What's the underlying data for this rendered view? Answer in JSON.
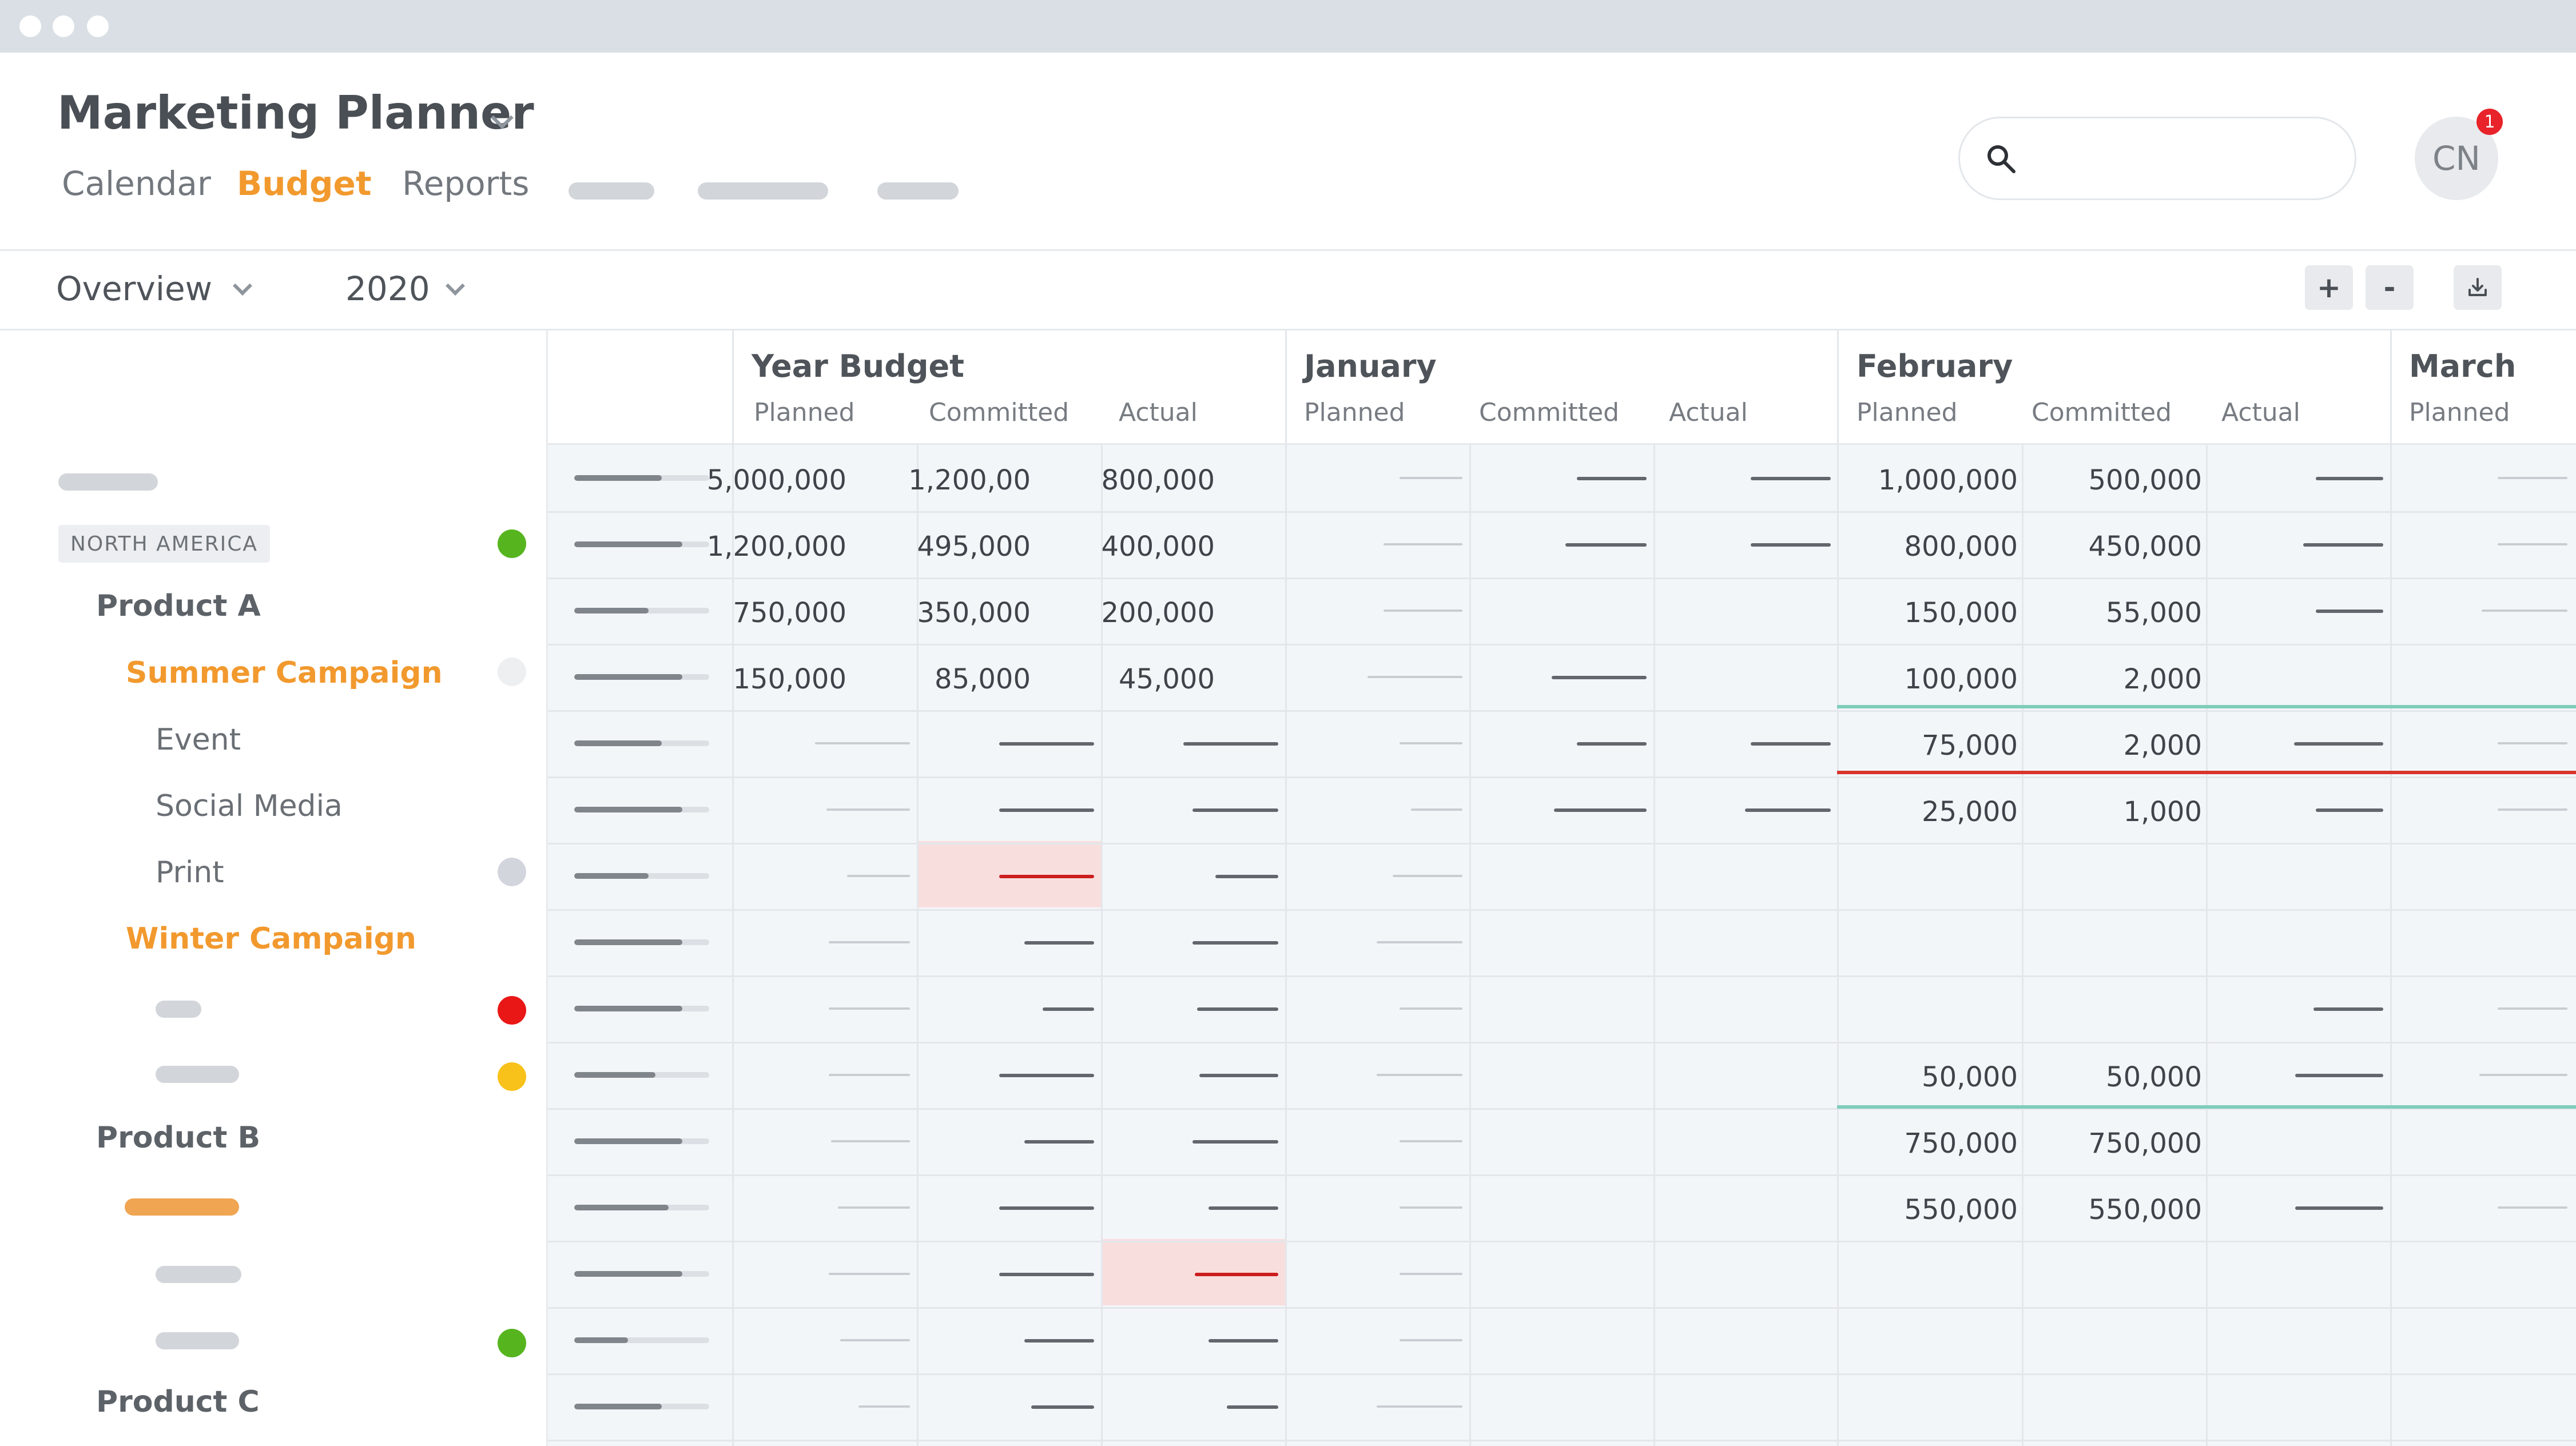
{
  "app": {
    "title": "Marketing Planner",
    "tabs": [
      {
        "label": "Calendar",
        "active": false
      },
      {
        "label": "Budget",
        "active": true
      },
      {
        "label": "Reports",
        "active": false
      }
    ],
    "avatar_initials": "CN",
    "notification_count": "1"
  },
  "toolbar": {
    "view": "Overview",
    "year": "2020",
    "zoom_in": "+",
    "zoom_out": "-"
  },
  "sidebar": {
    "region": "NORTH AMERICA",
    "product_a": "Product A",
    "summer_campaign": "Summer Campaign",
    "event": "Event",
    "social_media": "Social Media",
    "print": "Print",
    "winter_campaign": "Winter Campaign",
    "product_b": "Product B",
    "product_c": "Product C"
  },
  "status_colors": {
    "green": "#56b51f",
    "yellow": "#f8c21a",
    "red": "#ea1717",
    "gray": "#d2d6dc",
    "light": "#eeeff1"
  },
  "columns": {
    "year_budget": "Year Budget",
    "january": "January",
    "february": "February",
    "march": "March",
    "planned": "Planned",
    "committed": "Committed",
    "actual": "Actual"
  },
  "values": {
    "r1": {
      "yb_planned": "5,000,000",
      "yb_committed": "1,200,00",
      "yb_actual": "800,000",
      "feb_planned": "1,000,000",
      "feb_committed": "500,000"
    },
    "r2": {
      "yb_planned": "1,200,000",
      "yb_committed": "495,000",
      "yb_actual": "400,000",
      "feb_planned": "800,000",
      "feb_committed": "450,000"
    },
    "r3": {
      "yb_planned": "750,000",
      "yb_committed": "350,000",
      "yb_actual": "200,000",
      "feb_planned": "150,000",
      "feb_committed": "55,000"
    },
    "r4": {
      "yb_planned": "150,000",
      "yb_committed": "85,000",
      "yb_actual": "45,000",
      "feb_planned": "100,000",
      "feb_committed": "2,000"
    },
    "r5": {
      "feb_planned": "75,000",
      "feb_committed": "2,000"
    },
    "r6": {
      "feb_planned": "25,000",
      "feb_committed": "1,000"
    },
    "r10": {
      "feb_planned": "50,000",
      "feb_committed": "50,000"
    },
    "r11": {
      "feb_planned": "750,000",
      "feb_committed": "750,000"
    },
    "r12": {
      "feb_planned": "550,000",
      "feb_committed": "550,000"
    }
  },
  "progress": [
    0.65,
    0.8,
    0.55,
    0.8,
    0.65,
    0.8,
    0.55,
    0.8,
    0.8,
    0.6,
    0.8,
    0.7,
    0.8,
    0.4,
    0.65
  ]
}
